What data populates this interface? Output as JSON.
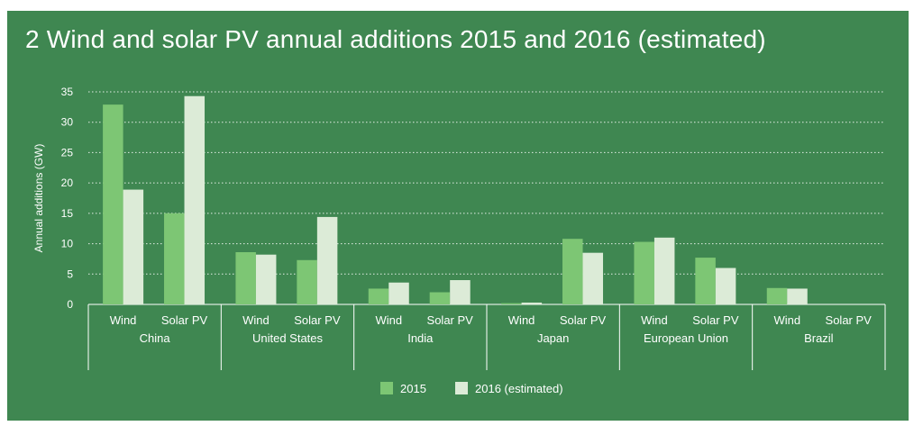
{
  "title": "2 Wind and solar PV annual additions 2015 and 2016 (estimated)",
  "colors": {
    "background": "#3f8751",
    "series_2015": "#7dc674",
    "series_2016": "#dcebd7",
    "text": "#ffffff",
    "grid": "#ffffff"
  },
  "chart_data": {
    "type": "bar",
    "ylabel": "Annual additions (GW)",
    "xlabel": "",
    "ylim": [
      0,
      35
    ],
    "yticks": [
      0,
      5,
      10,
      15,
      20,
      25,
      30,
      35
    ],
    "grid": true,
    "grid_style": "dotted horizontal",
    "legend_position": "bottom-center",
    "groups": [
      "China",
      "United States",
      "India",
      "Japan",
      "European Union",
      "Brazil"
    ],
    "categories": [
      "Wind",
      "Solar PV"
    ],
    "series": [
      {
        "name": "2015",
        "values": [
          [
            32.9,
            15.0
          ],
          [
            8.6,
            7.3
          ],
          [
            2.6,
            2.0
          ],
          [
            0.2,
            10.8
          ],
          [
            10.3,
            7.7
          ],
          [
            2.7,
            0.0
          ]
        ]
      },
      {
        "name": "2016 (estimated)",
        "values": [
          [
            18.9,
            34.3
          ],
          [
            8.2,
            14.4
          ],
          [
            3.6,
            4.0
          ],
          [
            0.3,
            8.5
          ],
          [
            11.0,
            6.0
          ],
          [
            2.6,
            0.0
          ]
        ]
      }
    ]
  }
}
